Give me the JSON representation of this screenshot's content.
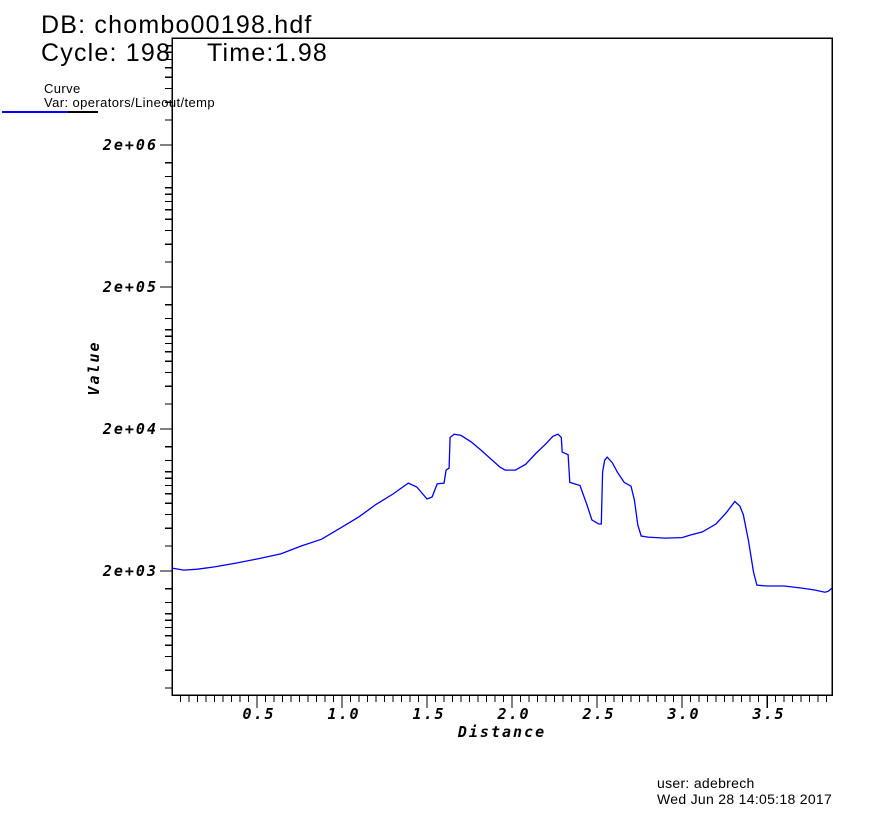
{
  "header": {
    "db_label": "DB: chombo00198.hdf",
    "cycle_label": "Cycle: 198",
    "time_label": "Time:1.98"
  },
  "legend": {
    "title": "Curve",
    "var_label": "Var: operators/Lineout/temp",
    "line_color": "#0000ff"
  },
  "footer": {
    "user_line": "user: adebrech",
    "date_line": "Wed Jun 28 14:05:18 2017"
  },
  "chart_data": {
    "type": "line",
    "title": "",
    "xlabel": "Distance",
    "ylabel": "Value",
    "x_range": [
      0,
      3.882
    ],
    "y_scale": "log",
    "y_range": [
      268,
      11340000
    ],
    "x_major_ticks": [
      0.5,
      1.0,
      1.5,
      2.0,
      2.5,
      3.0,
      3.5
    ],
    "x_tick_labels": [
      "0.5",
      "1.0",
      "1.5",
      "2.0",
      "2.5",
      "3.0",
      "3.5"
    ],
    "x_minor_step": 0.05,
    "y_major_ticks": [
      2000,
      20000,
      200000,
      2000000
    ],
    "y_tick_labels": [
      "2e+03",
      "2e+04",
      "2e+05",
      "2e+06"
    ],
    "y_minor_mantissas": [
      3,
      4,
      5,
      6,
      7,
      8,
      9,
      10,
      12,
      15
    ],
    "grid": false,
    "legend_position": "top-left",
    "axis_color": "#000000",
    "series": [
      {
        "name": "operators/Lineout/temp",
        "color": "#0000ff",
        "points": [
          [
            0.0,
            2099
          ],
          [
            0.07,
            2030
          ],
          [
            0.15,
            2060
          ],
          [
            0.25,
            2140
          ],
          [
            0.38,
            2280
          ],
          [
            0.5,
            2430
          ],
          [
            0.64,
            2640
          ],
          [
            0.76,
            3000
          ],
          [
            0.88,
            3350
          ],
          [
            1.0,
            4080
          ],
          [
            1.1,
            4820
          ],
          [
            1.2,
            5890
          ],
          [
            1.3,
            6980
          ],
          [
            1.39,
            8320
          ],
          [
            1.44,
            7810
          ],
          [
            1.5,
            6430
          ],
          [
            1.53,
            6640
          ],
          [
            1.56,
            8220
          ],
          [
            1.6,
            8320
          ],
          [
            1.612,
            10270
          ],
          [
            1.63,
            10610
          ],
          [
            1.636,
            17460
          ],
          [
            1.66,
            18400
          ],
          [
            1.7,
            18030
          ],
          [
            1.76,
            16230
          ],
          [
            1.82,
            14130
          ],
          [
            1.88,
            12190
          ],
          [
            1.93,
            10770
          ],
          [
            1.96,
            10270
          ],
          [
            2.02,
            10270
          ],
          [
            2.08,
            11290
          ],
          [
            2.14,
            13440
          ],
          [
            2.2,
            15760
          ],
          [
            2.24,
            17750
          ],
          [
            2.27,
            18400
          ],
          [
            2.29,
            17460
          ],
          [
            2.295,
            13770
          ],
          [
            2.33,
            13200
          ],
          [
            2.34,
            8420
          ],
          [
            2.4,
            8010
          ],
          [
            2.44,
            5890
          ],
          [
            2.47,
            4580
          ],
          [
            2.51,
            4290
          ],
          [
            2.525,
            4290
          ],
          [
            2.533,
            10000
          ],
          [
            2.545,
            12060
          ],
          [
            2.56,
            12680
          ],
          [
            2.59,
            11580
          ],
          [
            2.62,
            9940
          ],
          [
            2.66,
            8420
          ],
          [
            2.7,
            7910
          ],
          [
            2.72,
            6330
          ],
          [
            2.74,
            4220
          ],
          [
            2.76,
            3530
          ],
          [
            2.8,
            3470
          ],
          [
            2.9,
            3410
          ],
          [
            3.0,
            3440
          ],
          [
            3.05,
            3590
          ],
          [
            3.12,
            3770
          ],
          [
            3.2,
            4290
          ],
          [
            3.26,
            5150
          ],
          [
            3.31,
            6180
          ],
          [
            3.34,
            5730
          ],
          [
            3.36,
            4990
          ],
          [
            3.39,
            3300
          ],
          [
            3.42,
            1970
          ],
          [
            3.44,
            1590
          ],
          [
            3.5,
            1570
          ],
          [
            3.6,
            1570
          ],
          [
            3.7,
            1520
          ],
          [
            3.78,
            1470
          ],
          [
            3.84,
            1420
          ],
          [
            3.86,
            1440
          ],
          [
            3.882,
            1520
          ]
        ]
      }
    ]
  }
}
